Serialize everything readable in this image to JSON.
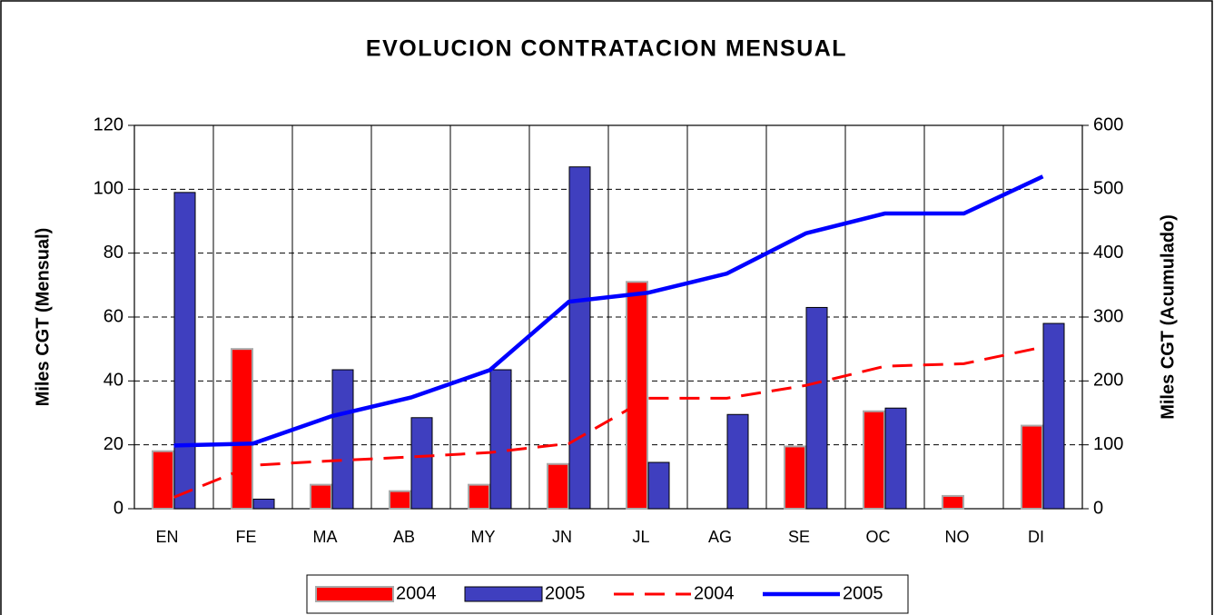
{
  "chart_data": {
    "type": "bar",
    "title": "EVOLUCION CONTRATACION MENSUAL",
    "y_label": "Miles CGT (Mensual)",
    "y2_label": "Miles CGT (Acumulado)",
    "categories": [
      "EN",
      "FE",
      "MA",
      "AB",
      "MY",
      "JN",
      "JL",
      "AG",
      "SE",
      "OC",
      "NO",
      "DI"
    ],
    "series": [
      {
        "name": "2004",
        "type": "bar",
        "color": "#ff0000",
        "values": [
          18,
          50,
          7.5,
          5.5,
          7.5,
          14,
          71,
          0,
          19.5,
          30.5,
          4,
          26
        ]
      },
      {
        "name": "2005",
        "type": "bar",
        "color": "#3f3fbf",
        "values": [
          99,
          3,
          43.5,
          28.5,
          43.5,
          107,
          14.5,
          29.5,
          63,
          31.5,
          0,
          58
        ]
      },
      {
        "name": "2004",
        "type": "line",
        "axis": "y2",
        "dashed": true,
        "color": "#ff0000",
        "values": [
          18,
          68,
          75,
          81,
          88,
          102,
          173,
          173,
          193,
          223,
          227,
          253
        ]
      },
      {
        "name": "2005",
        "type": "line",
        "axis": "y2",
        "dashed": false,
        "color": "#0000ff",
        "values": [
          99,
          102,
          145,
          174,
          217,
          324,
          338,
          368,
          431,
          462,
          462,
          520
        ]
      }
    ],
    "ylim": [
      0,
      120
    ],
    "yticks": [
      0,
      20,
      40,
      60,
      80,
      100,
      120
    ],
    "y2lim": [
      0,
      600
    ],
    "y2ticks": [
      0,
      100,
      200,
      300,
      400,
      500,
      600
    ],
    "grid": true,
    "legend": "bottom"
  }
}
